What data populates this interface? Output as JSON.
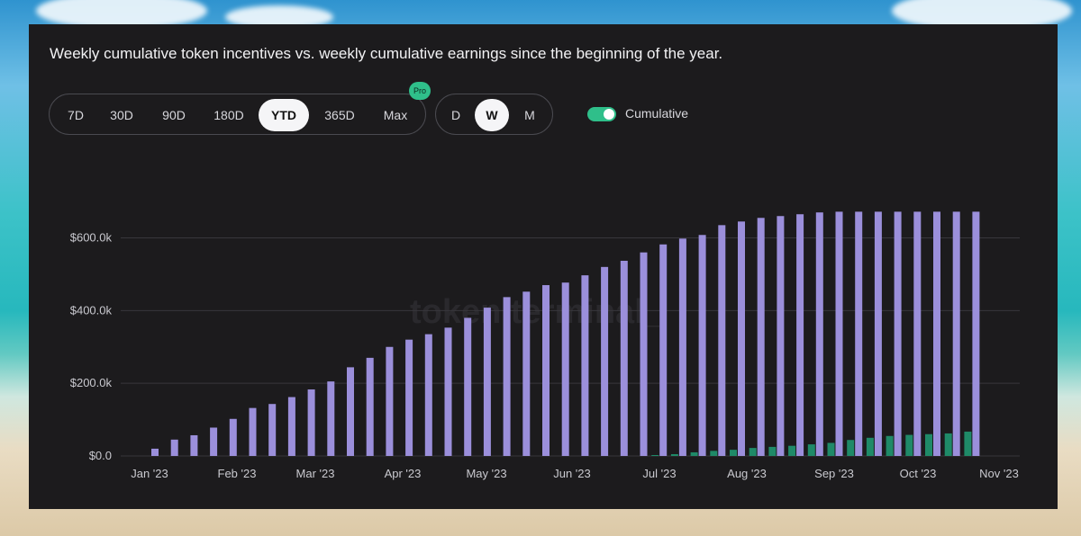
{
  "title": "Weekly cumulative token incentives vs. weekly cumulative earnings since the beginning of the year.",
  "range_buttons": [
    {
      "label": "7D",
      "active": false
    },
    {
      "label": "30D",
      "active": false
    },
    {
      "label": "90D",
      "active": false
    },
    {
      "label": "180D",
      "active": false
    },
    {
      "label": "YTD",
      "active": true
    },
    {
      "label": "365D",
      "active": false
    },
    {
      "label": "Max",
      "active": false
    }
  ],
  "pro_badge": "Pro",
  "granularity_buttons": [
    {
      "label": "D",
      "active": false
    },
    {
      "label": "W",
      "active": true
    },
    {
      "label": "M",
      "active": false
    }
  ],
  "cumulative_toggle": {
    "label": "Cumulative",
    "on": true
  },
  "watermark": "token terminal_",
  "colors": {
    "incentives": "#9b8fdb",
    "earnings": "#1f8a68",
    "toggle_on": "#2fbf8a",
    "panel_bg": "#1c1b1d"
  },
  "chart_data": {
    "type": "bar",
    "title": "",
    "xlabel": "",
    "ylabel": "",
    "ylim": [
      0,
      720000
    ],
    "yticks": [
      0,
      200000,
      400000,
      600000
    ],
    "ytick_labels": [
      "$0.0",
      "$200.0k",
      "$400.0k",
      "$600.0k"
    ],
    "xtick_labels": [
      "Jan '23",
      "Feb '23",
      "Mar '23",
      "Apr '23",
      "May '23",
      "Jun '23",
      "Jul '23",
      "Aug '23",
      "Sep '23",
      "Oct '23",
      "Nov '23"
    ],
    "grid": true,
    "legend": "none",
    "series": [
      {
        "key": "incentives",
        "values": [
          20000,
          45000,
          57000,
          78000,
          102000,
          132000,
          143000,
          162000,
          183000,
          205000,
          244000,
          270000,
          300000,
          320000,
          335000,
          353000,
          380000,
          408000,
          437000,
          452000,
          470000,
          477000,
          497000,
          520000,
          537000,
          560000,
          582000,
          598000,
          608000,
          635000,
          645000,
          655000,
          660000,
          665000,
          670000,
          672000,
          672000,
          672000,
          672000,
          672000,
          672000,
          672000,
          672000
        ]
      },
      {
        "key": "earnings",
        "values": [
          0,
          0,
          0,
          0,
          0,
          0,
          0,
          0,
          0,
          0,
          0,
          0,
          0,
          0,
          0,
          0,
          0,
          0,
          0,
          0,
          0,
          0,
          0,
          0,
          0,
          0,
          2000,
          5000,
          10000,
          14000,
          17000,
          22000,
          25000,
          28000,
          32000,
          36000,
          44000,
          50000,
          55000,
          58000,
          60000,
          62000,
          67000
        ]
      }
    ]
  }
}
